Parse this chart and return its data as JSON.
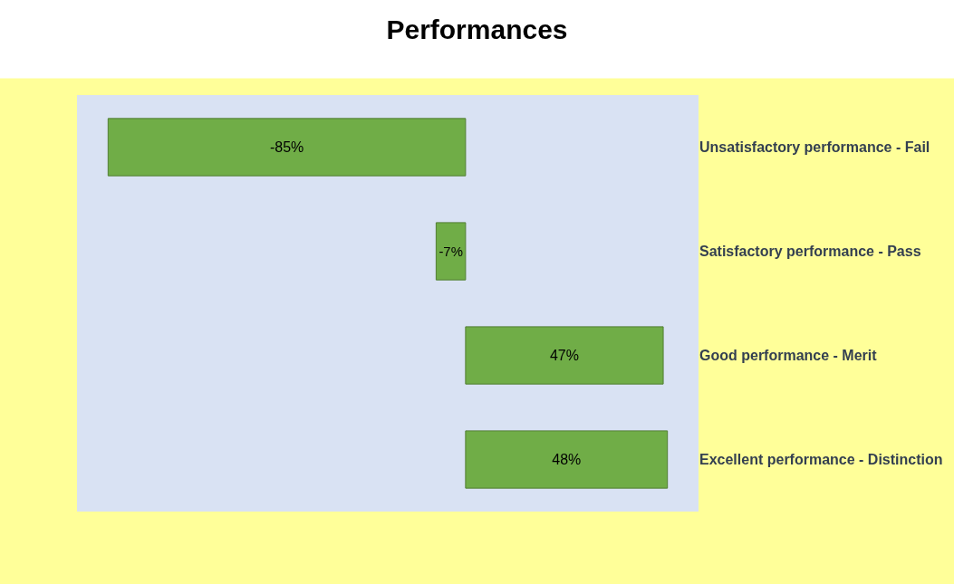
{
  "chart_data": {
    "type": "bar",
    "title": "Performances",
    "orientation": "horizontal",
    "categories": [
      "Unsatisfactory performance - Fail",
      "Satisfactory performance - Pass",
      "Good performance - Merit",
      "Excellent performance - Distinction"
    ],
    "values": [
      -85,
      -7,
      47,
      48
    ],
    "value_labels": [
      "-85%",
      "-7%",
      "47%",
      "48%"
    ],
    "color": "#70ad47",
    "tick_labels": "y",
    "grid": false,
    "legend": false
  }
}
